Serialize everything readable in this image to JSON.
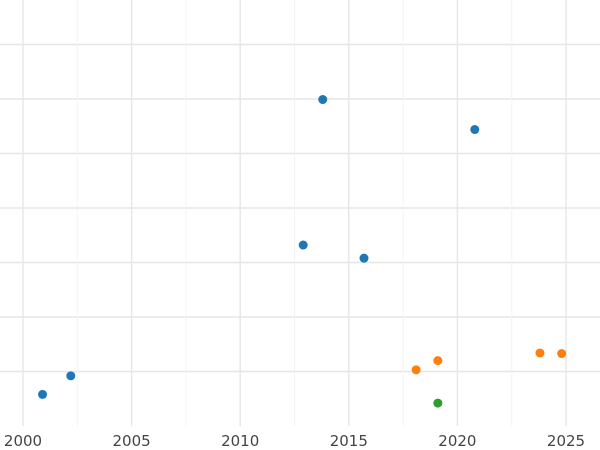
{
  "chart_data": {
    "type": "scatter",
    "title": "",
    "xlabel": "",
    "ylabel": "",
    "grid": true,
    "xlim": [
      2000,
      2026.5
    ],
    "ylim": [
      0,
      8
    ],
    "xticks": [
      2000,
      2005,
      2010,
      2015,
      2020,
      2025
    ],
    "xtick_labels": [
      "2000",
      "2005",
      "2010",
      "2015",
      "2020",
      "2025"
    ],
    "yticks": [
      1,
      2,
      3,
      4,
      5,
      6,
      7
    ],
    "series": [
      {
        "color": "#1f77b4",
        "x": [
          2000.9,
          2002.2,
          2012.9,
          2013.8,
          2015.7,
          2020.8
        ],
        "y": [
          0.58,
          0.92,
          3.32,
          5.99,
          3.08,
          5.44
        ]
      },
      {
        "color": "#ff7f0e",
        "x": [
          2018.1,
          2019.1,
          2023.8,
          2024.8
        ],
        "y": [
          1.03,
          1.2,
          1.34,
          1.33
        ]
      },
      {
        "color": "#2ca02c",
        "x": [
          2019.1
        ],
        "y": [
          0.42
        ]
      }
    ]
  }
}
